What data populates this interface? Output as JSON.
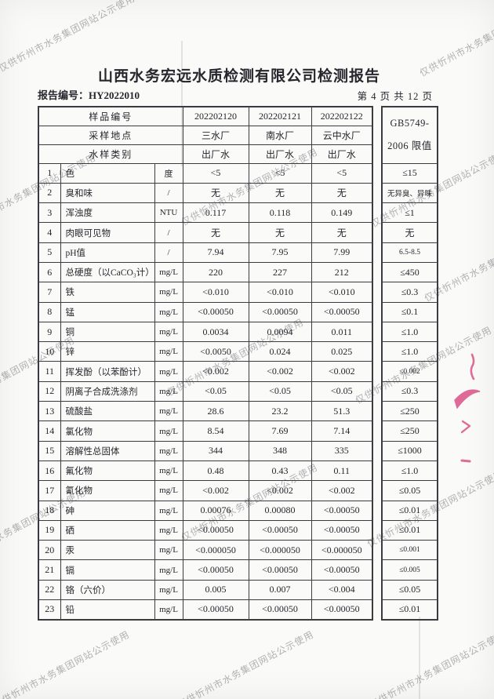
{
  "page": {
    "title": "山西水务宏远水质检测有限公司检测报告",
    "report_no_label": "报告编号：",
    "report_no": "HY2022010",
    "page_indicator": "第 4 页 共 12 页"
  },
  "watermark": {
    "text": "仅供忻州市水务集团网站公示使用",
    "color": "#6a6a73"
  },
  "stamp": {
    "color": "#d8487f"
  },
  "table": {
    "header": {
      "sample_no_label": "样品编号",
      "location_label": "采样地点",
      "type_label": "水样类别",
      "samples": [
        {
          "no": "202202120",
          "location": "三水厂",
          "type": "出厂水"
        },
        {
          "no": "202202121",
          "location": "南水厂",
          "type": "出厂水"
        },
        {
          "no": "202202122",
          "location": "云中水厂",
          "type": "出厂水"
        }
      ],
      "limit_header_line1": "GB5749-",
      "limit_header_line2": "2006 限值"
    },
    "rows": [
      {
        "no": "1",
        "name": "色",
        "unit": "度",
        "values": [
          "<5",
          "<5",
          "<5"
        ],
        "limit": "≤15"
      },
      {
        "no": "2",
        "name": "臭和味",
        "unit": "/",
        "values": [
          "无",
          "无",
          "无"
        ],
        "limit": "无异臭、异味"
      },
      {
        "no": "3",
        "name": "浑浊度",
        "unit": "NTU",
        "values": [
          "0.117",
          "0.118",
          "0.149"
        ],
        "limit": "≤1"
      },
      {
        "no": "4",
        "name": "肉眼可见物",
        "unit": "/",
        "values": [
          "无",
          "无",
          "无"
        ],
        "limit": "无"
      },
      {
        "no": "5",
        "name": "pH值",
        "unit": "/",
        "values": [
          "7.94",
          "7.95",
          "7.99"
        ],
        "limit": "6.5-8.5"
      },
      {
        "no": "6",
        "name": "总硬度（以CaCO₃计）",
        "unit": "mg/L",
        "values": [
          "220",
          "227",
          "212"
        ],
        "limit": "≤450"
      },
      {
        "no": "7",
        "name": "铁",
        "unit": "mg/L",
        "values": [
          "<0.010",
          "<0.010",
          "<0.010"
        ],
        "limit": "≤0.3"
      },
      {
        "no": "8",
        "name": "锰",
        "unit": "mg/L",
        "values": [
          "<0.00050",
          "<0.00050",
          "<0.00050"
        ],
        "limit": "≤0.1"
      },
      {
        "no": "9",
        "name": "铜",
        "unit": "mg/L",
        "values": [
          "0.0034",
          "0.0094",
          "0.011"
        ],
        "limit": "≤1.0"
      },
      {
        "no": "10",
        "name": "锌",
        "unit": "mg/L",
        "values": [
          "<0.0050",
          "0.024",
          "0.025"
        ],
        "limit": "≤1.0"
      },
      {
        "no": "11",
        "name": "挥发酚（以苯酚计）",
        "unit": "mg/L",
        "values": [
          "<0.002",
          "<0.002",
          "<0.002"
        ],
        "limit": "≤0.002"
      },
      {
        "no": "12",
        "name": "阴离子合成洗涤剂",
        "unit": "mg/L",
        "values": [
          "<0.05",
          "<0.05",
          "<0.05"
        ],
        "limit": "≤0.3"
      },
      {
        "no": "13",
        "name": "硫酸盐",
        "unit": "mg/L",
        "values": [
          "28.6",
          "23.2",
          "51.3"
        ],
        "limit": "≤250"
      },
      {
        "no": "14",
        "name": "氯化物",
        "unit": "mg/L",
        "values": [
          "8.54",
          "7.69",
          "7.14"
        ],
        "limit": "≤250"
      },
      {
        "no": "15",
        "name": "溶解性总固体",
        "unit": "mg/L",
        "values": [
          "344",
          "348",
          "335"
        ],
        "limit": "≤1000"
      },
      {
        "no": "16",
        "name": "氟化物",
        "unit": "mg/L",
        "values": [
          "0.48",
          "0.43",
          "0.11"
        ],
        "limit": "≤1.0"
      },
      {
        "no": "17",
        "name": "氰化物",
        "unit": "mg/L",
        "values": [
          "<0.002",
          "<0.002",
          "<0.002"
        ],
        "limit": "≤0.05"
      },
      {
        "no": "18",
        "name": "砷",
        "unit": "mg/L",
        "values": [
          "0.00076",
          "0.00080",
          "<0.00050"
        ],
        "limit": "≤0.01"
      },
      {
        "no": "19",
        "name": "硒",
        "unit": "mg/L",
        "values": [
          "<0.00050",
          "<0.00050",
          "<0.00050"
        ],
        "limit": "≤0.01"
      },
      {
        "no": "20",
        "name": "汞",
        "unit": "mg/L",
        "values": [
          "<0.000050",
          "<0.000050",
          "<0.000050"
        ],
        "limit": "≤0.001"
      },
      {
        "no": "21",
        "name": "镉",
        "unit": "mg/L",
        "values": [
          "<0.00050",
          "<0.00050",
          "<0.00050"
        ],
        "limit": "≤0.005"
      },
      {
        "no": "22",
        "name": "铬（六价）",
        "unit": "mg/L",
        "values": [
          "0.005",
          "0.007",
          "<0.004"
        ],
        "limit": "≤0.05"
      },
      {
        "no": "23",
        "name": "铅",
        "unit": "mg/L",
        "values": [
          "<0.00050",
          "<0.00050",
          "<0.00050"
        ],
        "limit": "≤0.01"
      }
    ]
  }
}
